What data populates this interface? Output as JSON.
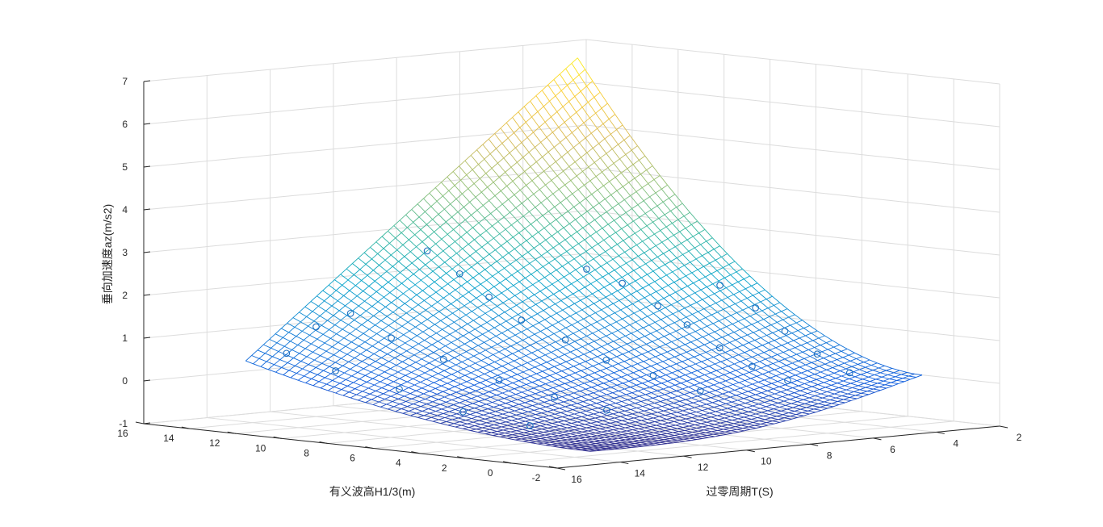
{
  "figure": {
    "background": "#ffffff"
  },
  "chart_data": {
    "type": "surface",
    "subtype": "3d-fitted-surface-with-scatter",
    "title": "",
    "zlabel": "垂向加速度az(m/s2)",
    "xlabel": "有义波高H1/3(m)",
    "ylabel": "过零周期T(S)",
    "z_ticks": [
      -1,
      0,
      1,
      2,
      3,
      4,
      5,
      6,
      7
    ],
    "zlim": [
      -1,
      7
    ],
    "h_ticks": [
      16,
      14,
      12,
      10,
      8,
      6,
      4,
      2,
      0,
      -2
    ],
    "hlim": [
      -2,
      16
    ],
    "t_ticks": [
      16,
      14,
      12,
      10,
      8,
      6,
      4,
      2
    ],
    "tlim": [
      2,
      16
    ],
    "surface": {
      "h_range": [
        0,
        15
      ],
      "t_range": [
        3,
        13.5
      ],
      "corner_values": {
        "h0_t3": 0.15,
        "h15_t3": 6.7,
        "h0_t13.5": -0.9,
        "h15_t13.5": 0.35
      },
      "colormap": "parula",
      "mesh": "wireframe"
    },
    "scatter_points": [
      {
        "h": 1.5,
        "t": 4.2,
        "z": 0.2
      },
      {
        "h": 2.5,
        "t": 4.5,
        "z": 0.6
      },
      {
        "h": 3.5,
        "t": 4.8,
        "z": 1.1
      },
      {
        "h": 4.5,
        "t": 5.0,
        "z": 1.6
      },
      {
        "h": 5.5,
        "t": 5.4,
        "z": 2.1
      },
      {
        "h": 2.0,
        "t": 5.8,
        "z": 0.1
      },
      {
        "h": 3.0,
        "t": 6.2,
        "z": 0.4
      },
      {
        "h": 4.0,
        "t": 6.5,
        "z": 0.8
      },
      {
        "h": 5.0,
        "t": 6.8,
        "z": 1.3
      },
      {
        "h": 6.0,
        "t": 7.0,
        "z": 1.7
      },
      {
        "h": 7.0,
        "t": 7.4,
        "z": 2.2
      },
      {
        "h": 8.0,
        "t": 7.8,
        "z": 2.5
      },
      {
        "h": 2.5,
        "t": 8.2,
        "z": 0.0
      },
      {
        "h": 4.0,
        "t": 8.6,
        "z": 0.3
      },
      {
        "h": 5.5,
        "t": 9.0,
        "z": 0.6
      },
      {
        "h": 7.0,
        "t": 9.2,
        "z": 1.0
      },
      {
        "h": 8.5,
        "t": 9.5,
        "z": 1.4
      },
      {
        "h": 9.5,
        "t": 9.8,
        "z": 1.9
      },
      {
        "h": 10.5,
        "t": 10.0,
        "z": 2.4
      },
      {
        "h": 11.5,
        "t": 10.3,
        "z": 2.9
      },
      {
        "h": 3.0,
        "t": 10.8,
        "z": -0.3
      },
      {
        "h": 5.0,
        "t": 11.0,
        "z": -0.1
      },
      {
        "h": 7.0,
        "t": 11.3,
        "z": 0.2
      },
      {
        "h": 9.0,
        "t": 11.6,
        "z": 0.6
      },
      {
        "h": 11.0,
        "t": 11.8,
        "z": 1.0
      },
      {
        "h": 12.5,
        "t": 12.0,
        "z": 1.5
      },
      {
        "h": 4.0,
        "t": 12.5,
        "z": -0.6
      },
      {
        "h": 6.5,
        "t": 12.8,
        "z": -0.4
      },
      {
        "h": 9.0,
        "t": 13.0,
        "z": 0.0
      },
      {
        "h": 11.5,
        "t": 13.2,
        "z": 0.3
      },
      {
        "h": 13.5,
        "t": 13.3,
        "z": 0.6
      },
      {
        "h": 14.0,
        "t": 12.0,
        "z": 1.1
      }
    ],
    "grid": true,
    "legend": "none"
  }
}
